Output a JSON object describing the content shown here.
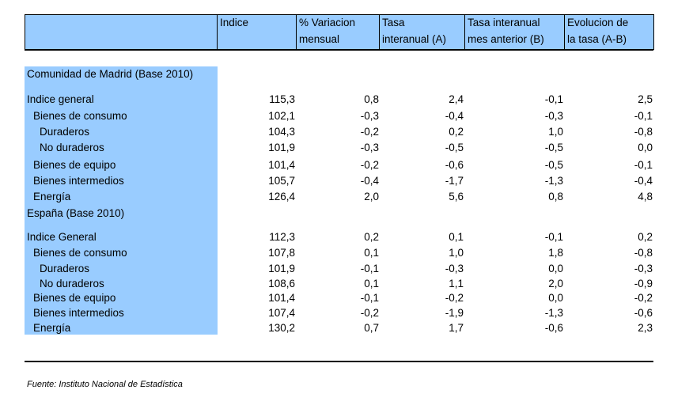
{
  "header": {
    "indice": "Indice",
    "variacion": [
      "% Variacion",
      "mensual"
    ],
    "tasa": [
      "Tasa",
      "interanual (A)"
    ],
    "tasa_anterior": [
      "Tasa interanual",
      "mes anterior (B)"
    ],
    "evolucion": [
      "Evolucion de",
      "la tasa (A-B)"
    ]
  },
  "rows": [
    {
      "label": "Comunidad de Madrid (Base 2010)",
      "level": 0,
      "values": []
    },
    {
      "label": "Indice general",
      "level": 0,
      "values": [
        "115,3",
        "0,8",
        "2,4",
        "-0,1",
        "2,5"
      ]
    },
    {
      "label": "Bienes de consumo",
      "level": 1,
      "values": [
        "102,1",
        "-0,3",
        "-0,4",
        "-0,3",
        "-0,1"
      ]
    },
    {
      "label": "Duraderos",
      "level": 2,
      "values": [
        "104,3",
        "-0,2",
        "0,2",
        "1,0",
        "-0,8"
      ]
    },
    {
      "label": "No duraderos",
      "level": 2,
      "values": [
        "101,9",
        "-0,3",
        "-0,5",
        "-0,5",
        "0,0"
      ]
    },
    {
      "label": "Bienes de equipo",
      "level": 1,
      "values": [
        "101,4",
        "-0,2",
        "-0,6",
        "-0,5",
        "-0,1"
      ]
    },
    {
      "label": "Bienes intermedios",
      "level": 1,
      "values": [
        "105,7",
        "-0,4",
        "-1,7",
        "-1,3",
        "-0,4"
      ]
    },
    {
      "label": "Energía",
      "level": 1,
      "values": [
        "126,4",
        "2,0",
        "5,6",
        "0,8",
        "4,8"
      ]
    },
    {
      "label": "España (Base 2010)",
      "level": 0,
      "values": []
    },
    {
      "label": "Indice General",
      "level": 0,
      "values": [
        "112,3",
        "0,2",
        "0,1",
        "-0,1",
        "0,2"
      ]
    },
    {
      "label": "Bienes de consumo",
      "level": 1,
      "values": [
        "107,8",
        "0,1",
        "1,0",
        "1,8",
        "-0,8"
      ]
    },
    {
      "label": "Duraderos",
      "level": 2,
      "values": [
        "101,9",
        "-0,1",
        "-0,3",
        "0,0",
        "-0,3"
      ]
    },
    {
      "label": "No duraderos",
      "level": 2,
      "values": [
        "108,6",
        "0,1",
        "1,1",
        "2,0",
        "-0,9"
      ]
    },
    {
      "label": "Bienes de equipo",
      "level": 1,
      "values": [
        "101,4",
        "-0,1",
        "-0,2",
        "0,0",
        "-0,2"
      ]
    },
    {
      "label": "Bienes intermedios",
      "level": 1,
      "values": [
        "107,4",
        "-0,2",
        "-1,9",
        "-1,3",
        "-0,6"
      ]
    },
    {
      "label": "Energía",
      "level": 1,
      "values": [
        "130,2",
        "0,7",
        "1,7",
        "-0,6",
        "2,3"
      ]
    }
  ],
  "source": "Fuente: Instituto Nacional de Estadística",
  "colors": {
    "header_bg": "#99ccff",
    "label_bg": "#99ccff"
  }
}
